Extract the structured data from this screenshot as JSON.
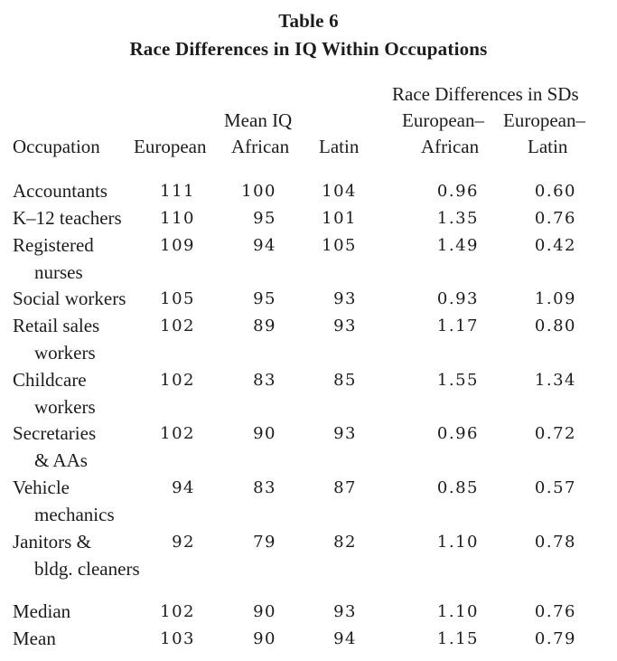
{
  "title": {
    "line1": "Table 6",
    "line2": "Race Differences in IQ Within Occupations"
  },
  "headers": {
    "group_mean_iq": "Mean IQ",
    "group_race_diff": "Race Differences in SDs",
    "occupation": "Occupation",
    "european": "European",
    "african": "African",
    "latin": "Latin",
    "eu_af_top": "European–",
    "eu_af_bottom": "African",
    "eu_la_top": "European–",
    "eu_la_bottom": "Latin"
  },
  "rows": [
    {
      "label": [
        "Accountants"
      ],
      "european": "111",
      "african": "100",
      "latin": "104",
      "eu_af": "0.96",
      "eu_la": "0.60"
    },
    {
      "label": [
        "K–12 teachers"
      ],
      "european": "110",
      "african": "95",
      "latin": "101",
      "eu_af": "1.35",
      "eu_la": "0.76"
    },
    {
      "label": [
        "Registered",
        "nurses"
      ],
      "european": "109",
      "african": "94",
      "latin": "105",
      "eu_af": "1.49",
      "eu_la": "0.42"
    },
    {
      "label": [
        "Social workers"
      ],
      "european": "105",
      "african": "95",
      "latin": "93",
      "eu_af": "0.93",
      "eu_la": "1.09"
    },
    {
      "label": [
        "Retail sales",
        "workers"
      ],
      "european": "102",
      "african": "89",
      "latin": "93",
      "eu_af": "1.17",
      "eu_la": "0.80"
    },
    {
      "label": [
        "Childcare",
        "workers"
      ],
      "european": "102",
      "african": "83",
      "latin": "85",
      "eu_af": "1.55",
      "eu_la": "1.34"
    },
    {
      "label": [
        "Secretaries",
        "& AAs"
      ],
      "european": "102",
      "african": "90",
      "latin": "93",
      "eu_af": "0.96",
      "eu_la": "0.72"
    },
    {
      "label": [
        "Vehicle",
        "mechanics"
      ],
      "european": "94",
      "african": "83",
      "latin": "87",
      "eu_af": "0.85",
      "eu_la": "0.57"
    },
    {
      "label": [
        "Janitors &",
        "bldg. cleaners"
      ],
      "european": "92",
      "african": "79",
      "latin": "82",
      "eu_af": "1.10",
      "eu_la": "0.78"
    }
  ],
  "summary": [
    {
      "label": [
        "Median"
      ],
      "european": "102",
      "african": "90",
      "latin": "93",
      "eu_af": "1.10",
      "eu_la": "0.76"
    },
    {
      "label": [
        "Mean"
      ],
      "european": "103",
      "african": "90",
      "latin": "94",
      "eu_af": "1.15",
      "eu_la": "0.79"
    }
  ]
}
